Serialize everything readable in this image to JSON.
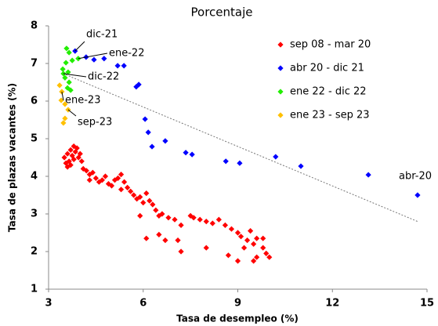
{
  "chart_data": {
    "type": "scatter",
    "subtitle": "Porcentaje",
    "x_label": "Tasa de desempleo (%)",
    "y_label": "Tasa de plazas vacantes (%)",
    "xlim": [
      3,
      15
    ],
    "xticks": [
      3,
      6,
      9,
      12,
      15
    ],
    "ylim": [
      1,
      8
    ],
    "yticks": [
      1,
      2,
      3,
      4,
      5,
      6,
      7,
      8
    ],
    "legend": "upper right",
    "series": [
      {
        "name": "sep 08 - mar 20",
        "color": "#ff0000",
        "x": [
          3.5,
          3.55,
          3.6,
          3.65,
          3.7,
          3.75,
          3.8,
          3.85,
          3.9,
          3.95,
          4.0,
          4.05,
          4.1,
          3.6,
          3.7,
          3.8,
          4.2,
          4.3,
          4.4,
          4.5,
          4.6,
          4.7,
          4.8,
          4.9,
          5.0,
          5.1,
          5.2,
          5.3,
          5.4,
          5.5,
          5.6,
          5.7,
          5.8,
          5.9,
          6.0,
          6.1,
          6.2,
          6.3,
          6.4,
          6.5,
          6.6,
          6.8,
          7.0,
          7.2,
          7.5,
          7.6,
          7.8,
          8.0,
          8.2,
          8.4,
          8.6,
          8.8,
          9.0,
          9.1,
          9.3,
          9.5,
          9.6,
          9.8,
          9.9,
          10.0,
          9.5,
          9.6,
          9.2,
          9.0,
          8.7,
          8.0,
          7.2,
          7.1,
          6.1,
          6.5,
          6.7,
          9.8,
          9.4,
          5.3,
          4.3,
          5.9
        ],
        "values": [
          4.5,
          4.35,
          4.6,
          4.4,
          4.7,
          4.55,
          4.8,
          4.65,
          4.75,
          4.5,
          4.6,
          4.4,
          4.2,
          4.25,
          4.3,
          4.45,
          4.15,
          4.05,
          4.1,
          3.95,
          3.85,
          3.9,
          4.0,
          3.8,
          3.75,
          3.9,
          3.95,
          4.05,
          3.85,
          3.7,
          3.6,
          3.5,
          3.4,
          3.45,
          3.3,
          3.55,
          3.35,
          3.25,
          3.1,
          2.95,
          3.0,
          2.9,
          2.85,
          2.7,
          2.95,
          2.9,
          2.85,
          2.8,
          2.75,
          2.85,
          2.7,
          2.6,
          2.5,
          2.4,
          2.3,
          2.2,
          2.35,
          2.1,
          1.95,
          1.85,
          1.75,
          1.85,
          2.1,
          1.75,
          1.9,
          2.1,
          2.0,
          2.3,
          2.35,
          2.45,
          2.3,
          2.35,
          2.55,
          3.65,
          3.9,
          2.95
        ]
      },
      {
        "name": "abr 20 - dic 21",
        "color": "#0000ff",
        "x": [
          14.7,
          13.14,
          11.0,
          10.2,
          9.06,
          8.62,
          7.55,
          7.35,
          6.7,
          6.28,
          6.16,
          6.06,
          5.86,
          5.78,
          5.39,
          5.19,
          4.76,
          4.44,
          4.19,
          3.84
        ],
        "values": [
          3.5,
          4.04,
          4.27,
          4.52,
          4.35,
          4.4,
          4.58,
          4.63,
          4.94,
          4.79,
          5.17,
          5.52,
          6.44,
          6.38,
          6.94,
          6.94,
          7.13,
          7.1,
          7.17,
          7.33
        ]
      },
      {
        "name": "ene 22 - dic 22",
        "color": "#22ee00",
        "x": [
          3.57,
          3.65,
          3.94,
          3.75,
          3.55,
          3.45,
          3.62,
          3.52,
          3.65,
          3.7,
          3.6,
          3.47
        ],
        "values": [
          7.4,
          7.29,
          7.13,
          7.08,
          7.02,
          6.85,
          6.77,
          6.62,
          6.5,
          6.29,
          6.35,
          6.73
        ]
      },
      {
        "name": "ene 23 - sep 23",
        "color": "#ffc000",
        "x": [
          3.35,
          3.42,
          3.4,
          3.52,
          3.62,
          3.52,
          3.47
        ],
        "values": [
          6.42,
          6.25,
          6.02,
          5.92,
          5.77,
          5.54,
          5.42
        ]
      }
    ],
    "trend_line": {
      "x": [
        3.55,
        14.7
      ],
      "y": [
        6.7,
        2.8
      ]
    },
    "annotations": [
      {
        "text": "dic-21",
        "x": 3.84,
        "y": 7.33
      },
      {
        "text": "ene-22",
        "x": 3.94,
        "y": 7.13
      },
      {
        "text": "dic-22",
        "x": 3.47,
        "y": 6.73
      },
      {
        "text": "ene-23",
        "x": 3.42,
        "y": 6.25
      },
      {
        "text": "sep-23",
        "x": 3.62,
        "y": 5.77
      },
      {
        "text": "abr-20",
        "x": 14.7,
        "y": 3.5
      }
    ]
  }
}
